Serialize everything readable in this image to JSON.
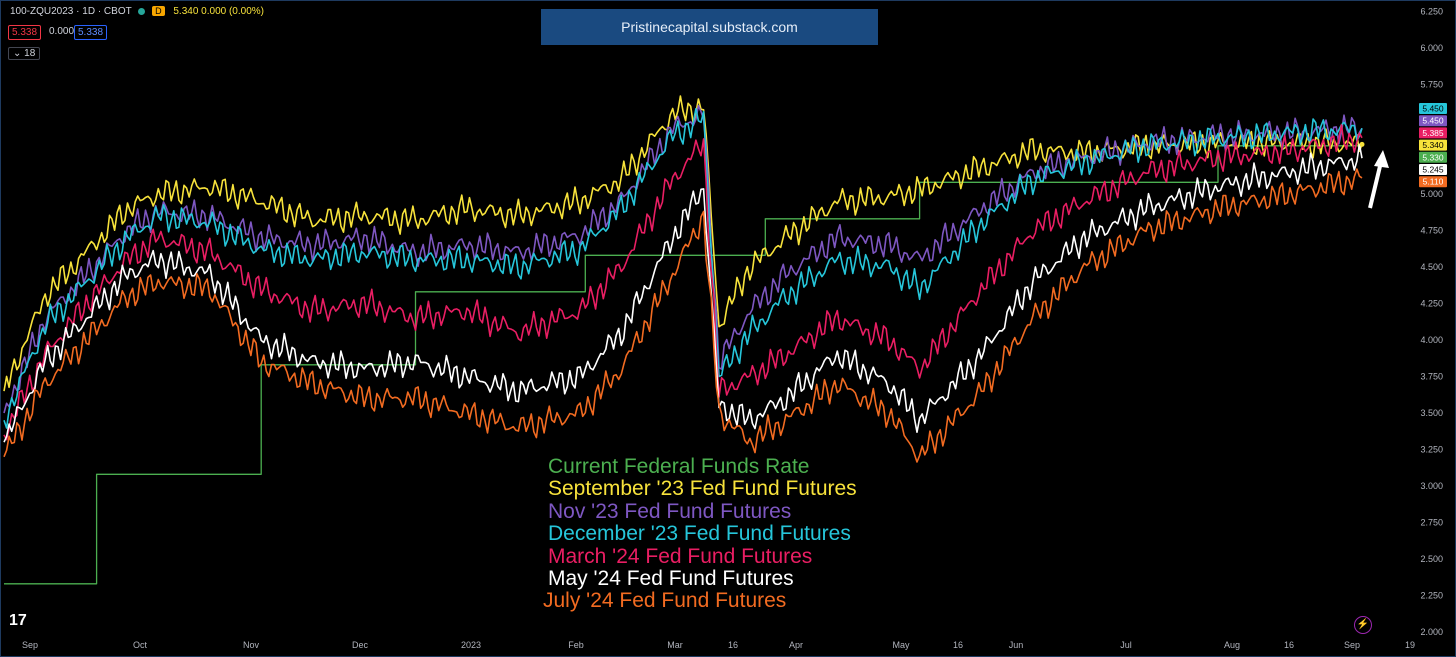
{
  "header": {
    "symbol": "100-ZQU2023 · 1D · CBOT",
    "badge": "D",
    "values": "5.340 0.000 (0.00%)",
    "pill_red": "5.338",
    "pill_mid": "0.000",
    "pill_blue": "5.338",
    "collapse": "18"
  },
  "banner": "Pristinecapital.substack.com",
  "legend": [
    {
      "label": "Current Federal Funds Rate",
      "color": "#4caf50"
    },
    {
      "label": "September '23 Fed Fund Futures",
      "color": "#f7e23b"
    },
    {
      "label": "Nov '23 Fed Fund Futures",
      "color": "#7e57c2"
    },
    {
      "label": "December '23 Fed Fund Futures",
      "color": "#26c6da"
    },
    {
      "label": "March '24 Fed Fund Futures",
      "color": "#e91e63"
    },
    {
      "label": "May '24 Fed Fund Futures",
      "color": "#ffffff"
    },
    {
      "label": "July '24 Fed Fund Futures",
      "color": "#f26b21"
    }
  ],
  "chart_data": {
    "type": "line",
    "x_ticks": [
      "Sep",
      "Oct",
      "Nov",
      "Dec",
      "2023",
      "Feb",
      "Mar",
      "16",
      "Apr",
      "May",
      "16",
      "Jun",
      "Jul",
      "Aug",
      "16",
      "Sep",
      "19"
    ],
    "y_ticks": [
      "6.250",
      "6.000",
      "5.750",
      "5.500",
      "5.250",
      "5.000",
      "4.750",
      "4.500",
      "4.250",
      "4.000",
      "3.750",
      "3.500",
      "3.250",
      "3.000",
      "2.750",
      "2.500",
      "2.250",
      "2.000"
    ],
    "ylim": [
      2.0,
      6.25
    ],
    "grid": false,
    "series": [
      {
        "name": "Current Federal Funds Rate",
        "color": "#4caf50",
        "values": [
          [
            0,
            2.33
          ],
          [
            18,
            2.33
          ],
          [
            18,
            3.08
          ],
          [
            50,
            3.08
          ],
          [
            50,
            3.83
          ],
          [
            80,
            3.83
          ],
          [
            80,
            4.33
          ],
          [
            113,
            4.33
          ],
          [
            113,
            4.58
          ],
          [
            148,
            4.58
          ],
          [
            148,
            4.83
          ],
          [
            178,
            4.83
          ],
          [
            178,
            5.08
          ],
          [
            236,
            5.08
          ],
          [
            236,
            5.33
          ],
          [
            264,
            5.33
          ]
        ]
      },
      {
        "name": "September '23 Fed Fund Futures",
        "color": "#f7e23b",
        "values": [
          [
            0,
            3.65
          ],
          [
            8,
            4.3
          ],
          [
            16,
            4.6
          ],
          [
            24,
            4.9
          ],
          [
            30,
            5.0
          ],
          [
            40,
            5.05
          ],
          [
            50,
            4.95
          ],
          [
            60,
            4.82
          ],
          [
            70,
            4.85
          ],
          [
            80,
            4.82
          ],
          [
            90,
            4.9
          ],
          [
            100,
            4.85
          ],
          [
            112,
            4.95
          ],
          [
            120,
            5.1
          ],
          [
            130,
            5.55
          ],
          [
            136,
            5.6
          ],
          [
            139,
            4.1
          ],
          [
            145,
            4.5
          ],
          [
            152,
            4.7
          ],
          [
            162,
            4.95
          ],
          [
            172,
            4.98
          ],
          [
            178,
            5.03
          ],
          [
            190,
            5.18
          ],
          [
            200,
            5.3
          ],
          [
            210,
            5.28
          ],
          [
            222,
            5.33
          ],
          [
            236,
            5.35
          ],
          [
            250,
            5.35
          ],
          [
            264,
            5.34
          ]
        ]
      },
      {
        "name": "Nov '23 Fed Fund Futures",
        "color": "#7e57c2",
        "values": [
          [
            0,
            3.5
          ],
          [
            8,
            4.15
          ],
          [
            16,
            4.45
          ],
          [
            24,
            4.75
          ],
          [
            30,
            4.88
          ],
          [
            40,
            4.85
          ],
          [
            50,
            4.7
          ],
          [
            60,
            4.65
          ],
          [
            70,
            4.7
          ],
          [
            80,
            4.6
          ],
          [
            90,
            4.65
          ],
          [
            100,
            4.6
          ],
          [
            112,
            4.72
          ],
          [
            120,
            4.95
          ],
          [
            130,
            5.45
          ],
          [
            136,
            5.55
          ],
          [
            139,
            3.85
          ],
          [
            145,
            4.2
          ],
          [
            152,
            4.45
          ],
          [
            162,
            4.7
          ],
          [
            172,
            4.65
          ],
          [
            178,
            4.55
          ],
          [
            190,
            4.9
          ],
          [
            200,
            5.15
          ],
          [
            210,
            5.25
          ],
          [
            222,
            5.35
          ],
          [
            236,
            5.4
          ],
          [
            250,
            5.42
          ],
          [
            264,
            5.45
          ]
        ]
      },
      {
        "name": "December '23 Fed Fund Futures",
        "color": "#26c6da",
        "values": [
          [
            0,
            3.45
          ],
          [
            8,
            4.1
          ],
          [
            16,
            4.4
          ],
          [
            24,
            4.7
          ],
          [
            30,
            4.85
          ],
          [
            40,
            4.8
          ],
          [
            50,
            4.62
          ],
          [
            60,
            4.55
          ],
          [
            70,
            4.6
          ],
          [
            80,
            4.55
          ],
          [
            90,
            4.55
          ],
          [
            100,
            4.5
          ],
          [
            112,
            4.62
          ],
          [
            120,
            4.9
          ],
          [
            130,
            5.4
          ],
          [
            136,
            5.52
          ],
          [
            139,
            3.75
          ],
          [
            145,
            4.05
          ],
          [
            152,
            4.3
          ],
          [
            162,
            4.55
          ],
          [
            172,
            4.5
          ],
          [
            178,
            4.35
          ],
          [
            190,
            4.8
          ],
          [
            200,
            5.1
          ],
          [
            210,
            5.22
          ],
          [
            222,
            5.33
          ],
          [
            236,
            5.38
          ],
          [
            250,
            5.42
          ],
          [
            264,
            5.45
          ]
        ]
      },
      {
        "name": "March '24 Fed Fund Futures",
        "color": "#e91e63",
        "values": [
          [
            0,
            3.35
          ],
          [
            8,
            3.9
          ],
          [
            16,
            4.25
          ],
          [
            24,
            4.55
          ],
          [
            30,
            4.7
          ],
          [
            40,
            4.6
          ],
          [
            50,
            4.35
          ],
          [
            60,
            4.2
          ],
          [
            70,
            4.25
          ],
          [
            80,
            4.15
          ],
          [
            90,
            4.2
          ],
          [
            100,
            4.05
          ],
          [
            112,
            4.2
          ],
          [
            120,
            4.5
          ],
          [
            130,
            5.1
          ],
          [
            136,
            5.35
          ],
          [
            139,
            3.65
          ],
          [
            145,
            3.75
          ],
          [
            152,
            3.9
          ],
          [
            162,
            4.15
          ],
          [
            172,
            4.0
          ],
          [
            178,
            3.8
          ],
          [
            190,
            4.35
          ],
          [
            200,
            4.75
          ],
          [
            210,
            4.95
          ],
          [
            222,
            5.15
          ],
          [
            236,
            5.25
          ],
          [
            250,
            5.3
          ],
          [
            264,
            5.385
          ]
        ]
      },
      {
        "name": "May '24 Fed Fund Futures",
        "color": "#ffffff",
        "values": [
          [
            0,
            3.3
          ],
          [
            8,
            3.85
          ],
          [
            16,
            4.15
          ],
          [
            24,
            4.45
          ],
          [
            30,
            4.55
          ],
          [
            40,
            4.45
          ],
          [
            50,
            4.0
          ],
          [
            60,
            3.85
          ],
          [
            70,
            3.8
          ],
          [
            80,
            3.85
          ],
          [
            90,
            3.75
          ],
          [
            100,
            3.65
          ],
          [
            112,
            3.75
          ],
          [
            120,
            4.05
          ],
          [
            130,
            4.7
          ],
          [
            136,
            5.05
          ],
          [
            139,
            3.55
          ],
          [
            145,
            3.45
          ],
          [
            152,
            3.6
          ],
          [
            162,
            3.9
          ],
          [
            172,
            3.7
          ],
          [
            178,
            3.45
          ],
          [
            190,
            3.9
          ],
          [
            200,
            4.4
          ],
          [
            210,
            4.7
          ],
          [
            222,
            4.9
          ],
          [
            236,
            5.05
          ],
          [
            250,
            5.15
          ],
          [
            264,
            5.245
          ]
        ]
      },
      {
        "name": "July '24 Fed Fund Futures",
        "color": "#f26b21",
        "values": [
          [
            0,
            3.2
          ],
          [
            8,
            3.7
          ],
          [
            16,
            4.0
          ],
          [
            24,
            4.3
          ],
          [
            30,
            4.4
          ],
          [
            40,
            4.35
          ],
          [
            50,
            3.85
          ],
          [
            60,
            3.7
          ],
          [
            70,
            3.6
          ],
          [
            80,
            3.6
          ],
          [
            90,
            3.5
          ],
          [
            100,
            3.4
          ],
          [
            112,
            3.5
          ],
          [
            120,
            3.8
          ],
          [
            130,
            4.45
          ],
          [
            136,
            4.85
          ],
          [
            139,
            3.5
          ],
          [
            145,
            3.3
          ],
          [
            152,
            3.45
          ],
          [
            162,
            3.7
          ],
          [
            172,
            3.5
          ],
          [
            178,
            3.2
          ],
          [
            190,
            3.65
          ],
          [
            200,
            4.15
          ],
          [
            210,
            4.5
          ],
          [
            222,
            4.75
          ],
          [
            236,
            4.9
          ],
          [
            250,
            5.0
          ],
          [
            264,
            5.11
          ]
        ]
      }
    ],
    "price_labels": [
      {
        "value": "5.450",
        "color": "#26c6da",
        "text_color": "#000"
      },
      {
        "value": "5.450",
        "color": "#7e57c2",
        "text_color": "#fff"
      },
      {
        "value": "5.385",
        "color": "#e91e63",
        "text_color": "#fff"
      },
      {
        "value": "5.340",
        "color": "#f7e23b",
        "text_color": "#000"
      },
      {
        "value": "5.330",
        "color": "#4caf50",
        "text_color": "#fff"
      },
      {
        "value": "5.245",
        "color": "#ffffff",
        "text_color": "#000"
      },
      {
        "value": "5.110",
        "color": "#f26b21",
        "text_color": "#fff"
      }
    ],
    "annotation": "up-arrow"
  },
  "footer": {
    "logo": "17",
    "bolt_icon": "lightning-icon"
  }
}
